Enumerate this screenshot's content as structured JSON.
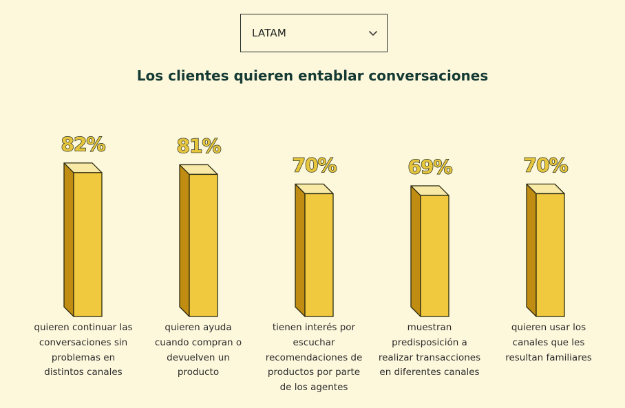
{
  "selector": {
    "value": "LATAM",
    "icon": "chevron-down-icon"
  },
  "chart_data": {
    "type": "bar",
    "title": "Los clientes quieren entablar conversaciones",
    "categories": [
      "quieren continuar las conversaciones sin problemas en distintos canales",
      "quieren ayuda cuando compran o devuelven un producto",
      "tienen interés por escuchar recomendaciones de productos por parte de los agentes",
      "muestran predisposición a realizar transacciones en diferentes canales",
      "quieren usar los canales que les resultan familiares"
    ],
    "values": [
      82,
      81,
      70,
      69,
      70
    ],
    "value_labels": [
      "82%",
      "81%",
      "70%",
      "69%",
      "70%"
    ],
    "ylim": [
      0,
      100
    ],
    "xlabel": "",
    "ylabel": "",
    "grid": false,
    "colors": {
      "front": "#f0c93f",
      "side": "#c08c12",
      "top": "#f8e9a7",
      "outline": "#2a2a10",
      "label_fill": "#e7c63e"
    }
  }
}
